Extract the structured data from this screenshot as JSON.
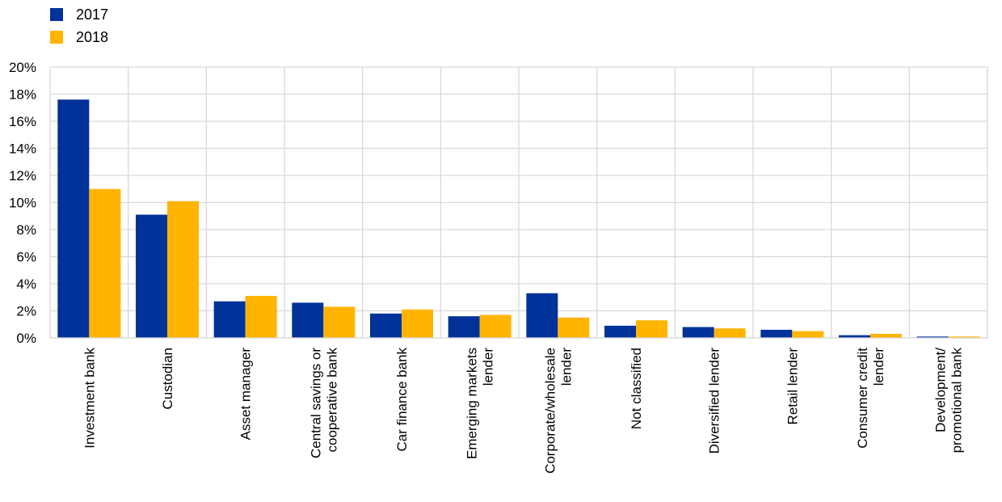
{
  "chart_data": {
    "type": "bar",
    "ylim": [
      0,
      20
    ],
    "ytick_step": 2,
    "ytick_labels": [
      "0%",
      "2%",
      "4%",
      "6%",
      "8%",
      "10%",
      "12%",
      "14%",
      "16%",
      "18%",
      "20%"
    ],
    "categories": [
      [
        "Investment bank"
      ],
      [
        "Custodian"
      ],
      [
        "Asset manager"
      ],
      [
        "Central savings or",
        "cooperative bank"
      ],
      [
        "Car finance bank"
      ],
      [
        "Emerging markets",
        "lender"
      ],
      [
        "Corporate/wholesale",
        "lender"
      ],
      [
        "Not classified"
      ],
      [
        "Diversified lender"
      ],
      [
        "Retail lender"
      ],
      [
        "Consumer credit",
        "lender"
      ],
      [
        "Development/",
        "promotional bank"
      ]
    ],
    "series": [
      {
        "name": "2017",
        "color": "#003299",
        "values": [
          17.6,
          9.1,
          2.7,
          2.6,
          1.8,
          1.6,
          3.3,
          0.9,
          0.8,
          0.6,
          0.2,
          0.1
        ]
      },
      {
        "name": "2018",
        "color": "#FFB400",
        "values": [
          11.0,
          10.1,
          3.1,
          2.3,
          2.1,
          1.7,
          1.5,
          1.3,
          0.7,
          0.5,
          0.3,
          0.1
        ]
      }
    ],
    "grid": true,
    "legend_position": "top-left"
  }
}
